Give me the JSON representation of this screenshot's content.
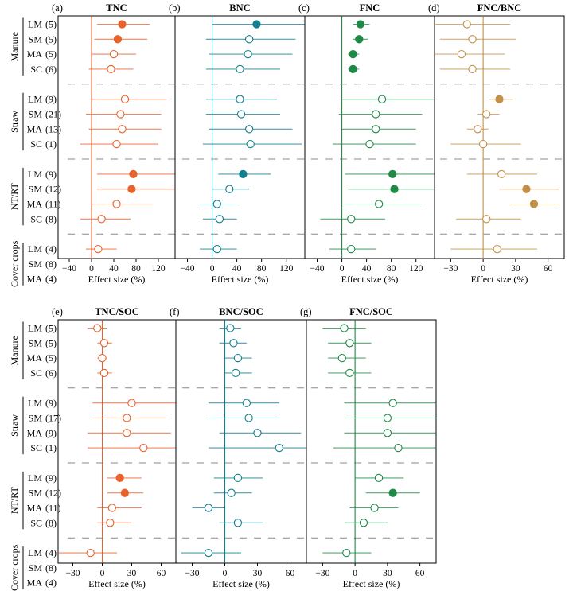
{
  "chart_data": {
    "type": "forest",
    "groups": [
      {
        "name": "Manure",
        "practices": [
          "LM",
          "SM",
          "MA",
          "SC"
        ]
      },
      {
        "name": "Straw",
        "practices": [
          "LM",
          "SM",
          "MA",
          "SC"
        ]
      },
      {
        "name": "NT/RT",
        "practices": [
          "LM",
          "SM",
          "MA",
          "SC"
        ]
      },
      {
        "name": "Cover crops",
        "practices": [
          "LM",
          "SM",
          "MA"
        ]
      }
    ],
    "xlabel": "Effect size (%)",
    "top_row": {
      "rows": [
        "LM",
        "SM",
        "MA",
        "SC",
        "LM",
        "SM",
        "MA",
        "SC",
        "LM",
        "SM",
        "MA",
        "SC",
        "LM",
        "SM",
        "MA"
      ],
      "n_labels": [
        "(5)",
        "(5)",
        "(5)",
        "(6)",
        "(9)",
        "(21)",
        "(13)",
        "(1)",
        "(9)",
        "(12)",
        "(11)",
        "(8)",
        "(4)",
        "(8)",
        "(4)"
      ],
      "panels": [
        {
          "letter": "(a)",
          "title": "TNC",
          "color": "#e8622c",
          "xlim": [
            -60,
            150
          ],
          "ticks": [
            -40,
            0,
            40,
            80,
            120
          ],
          "mean": [
            55,
            47,
            40,
            35,
            60,
            52,
            55,
            45,
            75,
            72,
            45,
            18,
            12,
            25,
            30
          ],
          "low": [
            10,
            5,
            0,
            -5,
            0,
            -10,
            -5,
            -20,
            10,
            10,
            0,
            -20,
            -10,
            10,
            0
          ],
          "high": [
            105,
            100,
            80,
            75,
            135,
            125,
            125,
            120,
            155,
            150,
            110,
            70,
            45,
            45,
            60
          ],
          "sig": [
            true,
            true,
            false,
            false,
            false,
            false,
            false,
            false,
            true,
            true,
            false,
            false,
            false,
            true,
            false
          ]
        },
        {
          "letter": "(b)",
          "title": "BNC",
          "color": "#137e8f",
          "xlim": [
            -60,
            150
          ],
          "ticks": [
            -40,
            0,
            40,
            80,
            120
          ],
          "mean": [
            72,
            60,
            58,
            45,
            45,
            47,
            60,
            62,
            50,
            28,
            8,
            12,
            8,
            28,
            35
          ],
          "low": [
            0,
            -10,
            -5,
            -10,
            -10,
            -10,
            -5,
            -15,
            10,
            0,
            -20,
            -15,
            -20,
            5,
            -5
          ],
          "high": [
            150,
            135,
            130,
            110,
            105,
            110,
            130,
            145,
            95,
            60,
            40,
            40,
            40,
            55,
            75
          ],
          "sig": [
            true,
            false,
            false,
            false,
            false,
            false,
            false,
            false,
            true,
            false,
            false,
            false,
            false,
            true,
            false
          ]
        },
        {
          "letter": "(c)",
          "title": "FNC",
          "color": "#1f8a47",
          "xlim": [
            -60,
            150
          ],
          "ticks": [
            -40,
            0,
            40,
            80,
            120
          ],
          "mean": [
            30,
            28,
            18,
            18,
            65,
            55,
            55,
            45,
            82,
            85,
            60,
            15,
            15,
            25,
            28
          ],
          "low": [
            18,
            18,
            10,
            10,
            0,
            -5,
            0,
            -15,
            5,
            10,
            0,
            -35,
            -20,
            -10,
            -10
          ],
          "high": [
            45,
            42,
            28,
            28,
            150,
            130,
            120,
            120,
            155,
            150,
            130,
            70,
            55,
            60,
            70
          ],
          "sig": [
            true,
            true,
            true,
            true,
            false,
            false,
            false,
            false,
            true,
            true,
            false,
            false,
            false,
            false,
            false
          ]
        },
        {
          "letter": "(d)",
          "title": "FNC/BNC",
          "color": "#c39049",
          "xlim": [
            -45,
            75
          ],
          "ticks": [
            -30,
            0,
            30,
            60
          ],
          "mean": [
            -15,
            -10,
            -20,
            -10,
            15,
            3,
            -5,
            0,
            17,
            40,
            47,
            3,
            13,
            0,
            0
          ],
          "low": [
            -45,
            -40,
            -45,
            -40,
            5,
            -5,
            -15,
            -30,
            -15,
            15,
            25,
            -25,
            -30,
            -30,
            -35
          ],
          "high": [
            25,
            30,
            20,
            25,
            27,
            15,
            5,
            35,
            50,
            70,
            70,
            35,
            50,
            35,
            45
          ],
          "sig": [
            false,
            false,
            false,
            false,
            true,
            false,
            false,
            false,
            false,
            true,
            true,
            false,
            false,
            false,
            false
          ]
        }
      ]
    },
    "bottom_row": {
      "rows": [
        "LM",
        "SM",
        "MA",
        "SC",
        "LM",
        "SM",
        "MA",
        "SC",
        "LM",
        "SM",
        "MA",
        "SC",
        "LM",
        "SM",
        "MA"
      ],
      "n_labels": [
        "(5)",
        "(5)",
        "(5)",
        "(6)",
        "(9)",
        "(17)",
        "(9)",
        "(1)",
        "(9)",
        "(12)",
        "(11)",
        "(8)",
        "(4)",
        "(8)",
        "(4)"
      ],
      "panels": [
        {
          "letter": "(e)",
          "title": "TNC/SOC",
          "color": "#e8622c",
          "xlim": [
            -45,
            75
          ],
          "ticks": [
            -30,
            0,
            30,
            60
          ],
          "mean": [
            -5,
            2,
            0,
            2,
            30,
            25,
            25,
            42,
            18,
            23,
            10,
            8,
            -12,
            3,
            5
          ],
          "low": [
            -15,
            -5,
            -5,
            -5,
            -10,
            -10,
            -15,
            -15,
            5,
            5,
            -5,
            -5,
            -45,
            -15,
            -20
          ],
          "high": [
            5,
            10,
            5,
            10,
            75,
            65,
            70,
            100,
            40,
            42,
            40,
            30,
            15,
            25,
            35
          ],
          "sig": [
            false,
            false,
            false,
            false,
            false,
            false,
            false,
            false,
            true,
            true,
            false,
            false,
            false,
            false,
            false
          ]
        },
        {
          "letter": "(f)",
          "title": "BNC/SOC",
          "color": "#137e8f",
          "xlim": [
            -45,
            75
          ],
          "ticks": [
            -30,
            0,
            30,
            60
          ],
          "mean": [
            5,
            8,
            12,
            10,
            20,
            22,
            30,
            50,
            12,
            6,
            -15,
            12,
            -15,
            10,
            15
          ],
          "low": [
            -5,
            -5,
            0,
            0,
            -15,
            -15,
            -5,
            -15,
            -10,
            -10,
            -30,
            -5,
            -40,
            -10,
            -15
          ],
          "high": [
            15,
            20,
            25,
            25,
            50,
            50,
            70,
            100,
            35,
            25,
            0,
            35,
            15,
            35,
            50
          ],
          "sig": [
            false,
            false,
            false,
            false,
            false,
            false,
            false,
            false,
            false,
            false,
            false,
            false,
            false,
            false,
            false
          ]
        },
        {
          "letter": "(g)",
          "title": "FNC/SOC",
          "color": "#1f8a47",
          "xlim": [
            -45,
            75
          ],
          "ticks": [
            -30,
            0,
            30,
            60
          ],
          "mean": [
            -10,
            -5,
            -12,
            -5,
            35,
            30,
            30,
            40,
            22,
            35,
            18,
            8,
            -8,
            5,
            8
          ],
          "low": [
            -30,
            -25,
            -25,
            -25,
            -10,
            -10,
            -10,
            -20,
            0,
            10,
            -5,
            -10,
            -30,
            -15,
            -25
          ],
          "high": [
            10,
            15,
            10,
            15,
            80,
            75,
            80,
            100,
            45,
            60,
            40,
            30,
            15,
            25,
            40
          ],
          "sig": [
            false,
            false,
            false,
            false,
            false,
            false,
            false,
            false,
            false,
            true,
            false,
            false,
            false,
            false,
            false
          ]
        }
      ]
    }
  }
}
